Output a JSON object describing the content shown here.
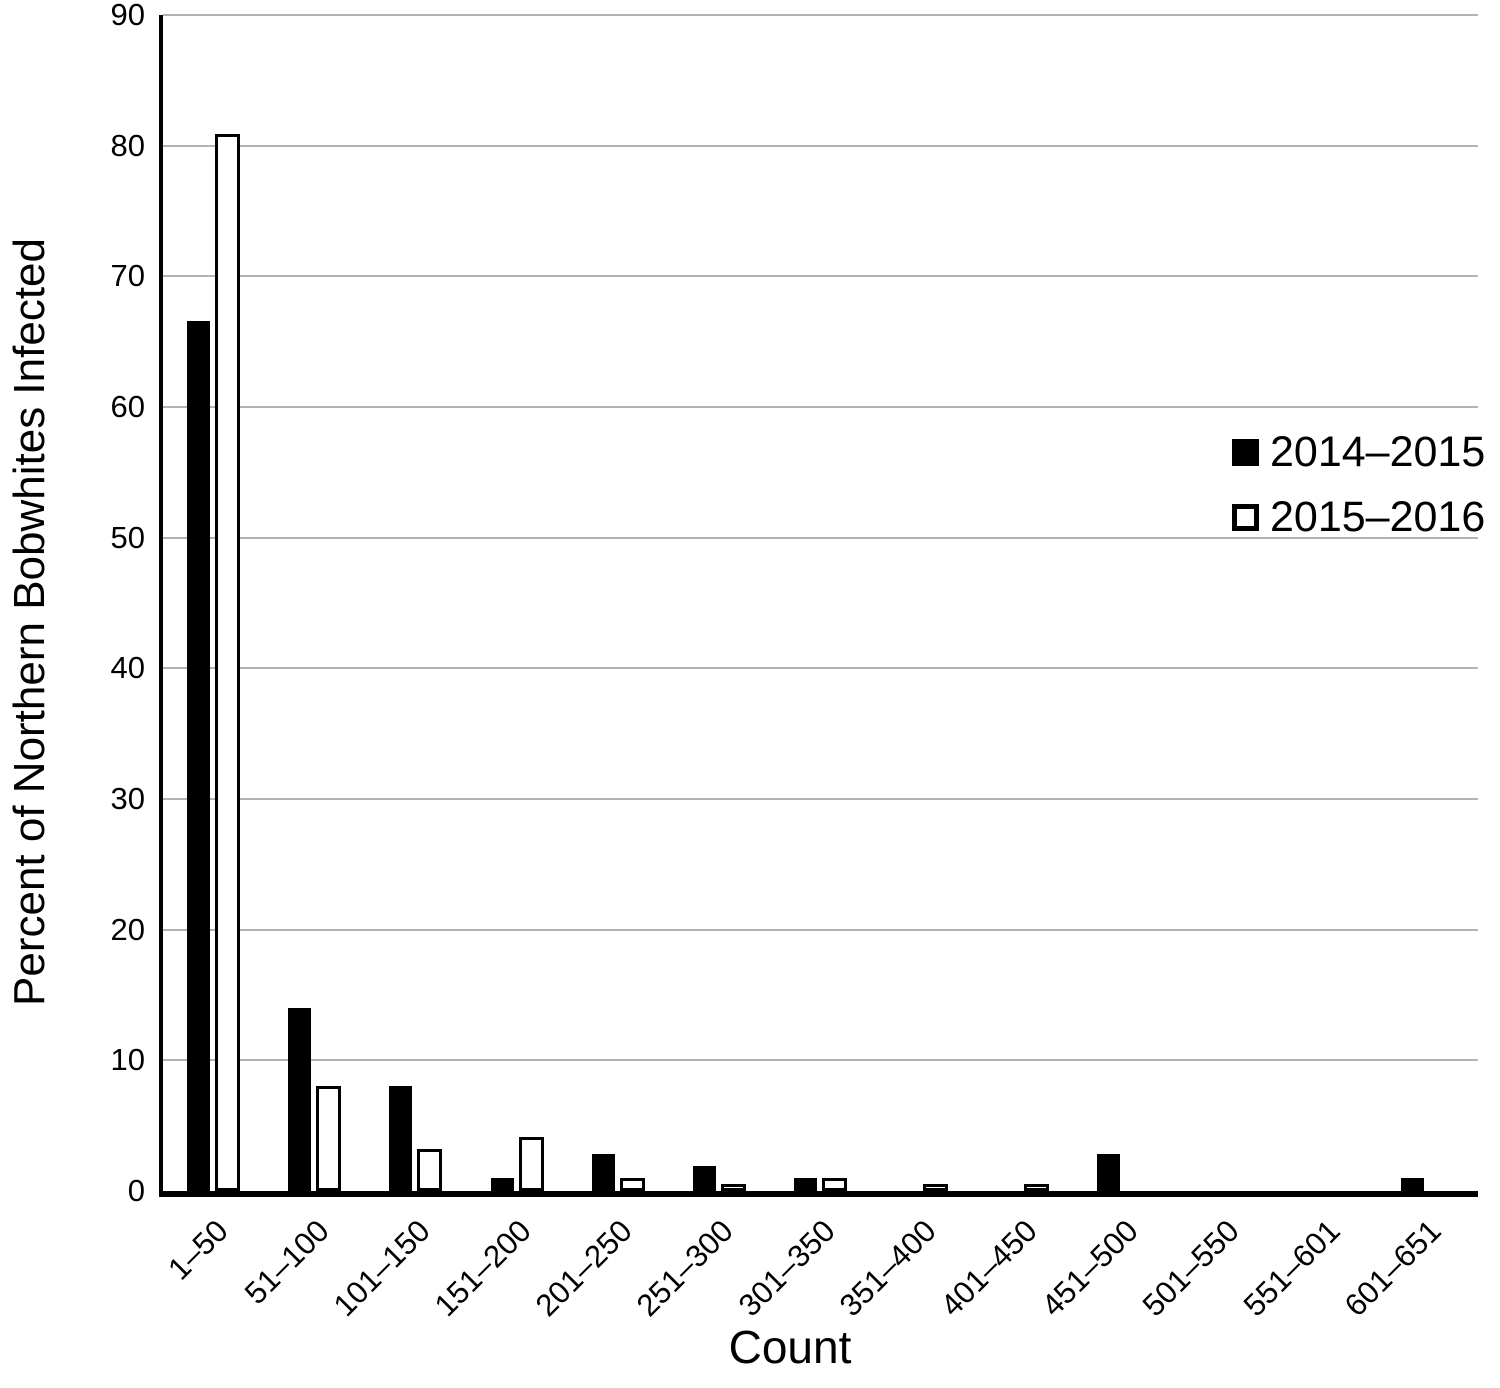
{
  "figure": {
    "background": "#ffffff",
    "text_color": "#000000",
    "gridline_color": "#b3b3b3",
    "bar_fill_color": "#000000",
    "bar_hollow_color": "#ffffff"
  },
  "chart_data": {
    "type": "bar",
    "title": "",
    "xlabel": "Count",
    "ylabel": "Percent of Northern Bobwhites Infected",
    "categories": [
      "1–50",
      "51–100",
      "101–150",
      "151–200",
      "201–250",
      "251–300",
      "301–350",
      "351–400",
      "401–450",
      "451–500",
      "501–550",
      "551–601",
      "601–651"
    ],
    "series": [
      {
        "name": "2014–2015",
        "style": "filled",
        "color": "#000000",
        "values": [
          66.6,
          14,
          8,
          1,
          2.8,
          1.9,
          1,
          0,
          0,
          2.8,
          0,
          0,
          1
        ]
      },
      {
        "name": "2015–2016",
        "style": "hollow",
        "color": "#ffffff",
        "values": [
          80.9,
          8,
          3.2,
          4.1,
          1,
          0.5,
          1,
          0.5,
          0.5,
          0,
          0,
          0,
          0
        ]
      }
    ],
    "ylim": [
      0,
      90
    ],
    "yticks": [
      0,
      10,
      20,
      30,
      40,
      50,
      60,
      70,
      80,
      90
    ],
    "grid": "horizontal",
    "grid_values": [
      10,
      20,
      30,
      40,
      50,
      60,
      70,
      80,
      90
    ],
    "legend_position": "upper-right"
  }
}
